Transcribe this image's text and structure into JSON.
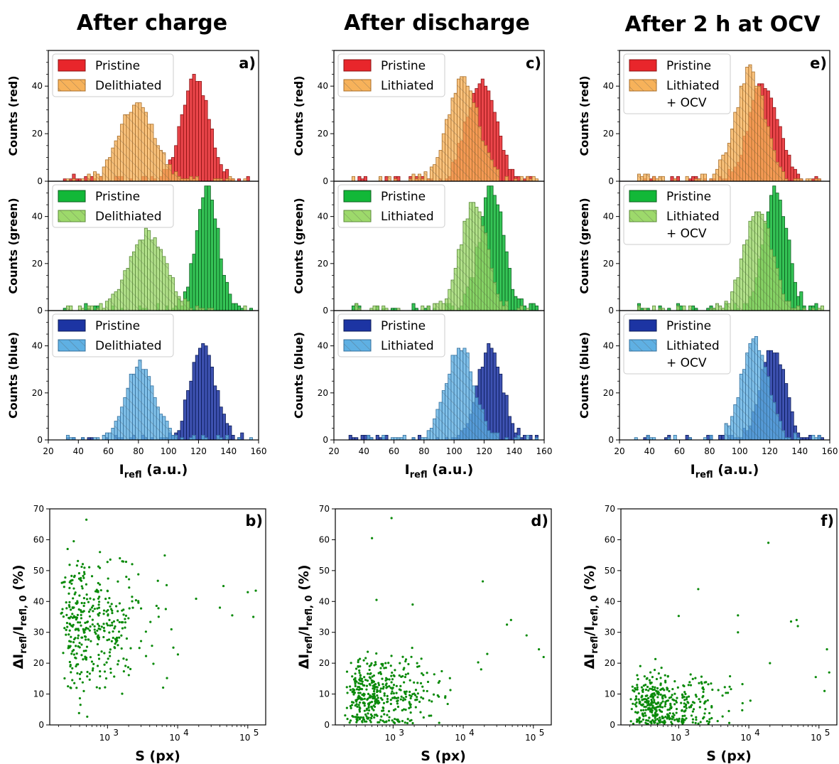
{
  "column_titles": [
    "After charge",
    "After discharge",
    "After 2 h at OCV"
  ],
  "colors": {
    "red_pristine": "#e8262b",
    "red_treated": "#f7b25a",
    "green_pristine": "#12b838",
    "green_treated": "#9dd96b",
    "blue_pristine": "#1c34a3",
    "blue_treated": "#5fb0e3",
    "scatter": "#0a8a0a"
  },
  "chart_data": [
    {
      "type": "bar",
      "panel": "a)",
      "column": 0,
      "xlabel": "I_refl (a.u.)",
      "xlim": [
        20,
        160
      ],
      "xticks": [
        20,
        40,
        60,
        80,
        100,
        120,
        140,
        160
      ],
      "rows": [
        {
          "ylabel": "Counts (red)",
          "ylim": [
            0,
            55
          ],
          "yticks": [
            0,
            20,
            40
          ],
          "pristine_label": "Pristine",
          "treated_label": "Delithiated",
          "pristine": {
            "mu": 118,
            "sigma": 9,
            "peak": 44
          },
          "treated": {
            "mu": 79,
            "sigma": 12,
            "peak": 32
          }
        },
        {
          "ylabel": "Counts (green)",
          "ylim": [
            0,
            55
          ],
          "yticks": [
            0,
            20,
            40
          ],
          "pristine_label": "Pristine",
          "treated_label": "Delithiated",
          "pristine": {
            "mu": 126,
            "sigma": 7.5,
            "peak": 52
          },
          "treated": {
            "mu": 86,
            "sigma": 12,
            "peak": 33
          }
        },
        {
          "ylabel": "Counts (blue)",
          "ylim": [
            0,
            55
          ],
          "yticks": [
            0,
            20,
            40
          ],
          "pristine_label": "Pristine",
          "treated_label": "Delithiated",
          "pristine": {
            "mu": 123,
            "sigma": 8.5,
            "peak": 39
          },
          "treated": {
            "mu": 81,
            "sigma": 10,
            "peak": 32
          }
        }
      ]
    },
    {
      "type": "bar",
      "panel": "c)",
      "column": 1,
      "xlabel": "I_refl (a.u.)",
      "xlim": [
        20,
        160
      ],
      "xticks": [
        20,
        40,
        60,
        80,
        100,
        120,
        140,
        160
      ],
      "rows": [
        {
          "ylabel": "Counts (red)",
          "ylim": [
            0,
            55
          ],
          "yticks": [
            0,
            20,
            40
          ],
          "pristine_label": "Pristine",
          "treated_label": "Lithiated",
          "pristine": {
            "mu": 118,
            "sigma": 10,
            "peak": 42
          },
          "treated": {
            "mu": 106,
            "sigma": 10,
            "peak": 44
          }
        },
        {
          "ylabel": "Counts (green)",
          "ylim": [
            0,
            55
          ],
          "yticks": [
            0,
            20,
            40
          ],
          "pristine_label": "Pristine",
          "treated_label": "Lithiated",
          "pristine": {
            "mu": 125,
            "sigma": 8,
            "peak": 52
          },
          "treated": {
            "mu": 113,
            "sigma": 9,
            "peak": 45
          }
        },
        {
          "ylabel": "Counts (blue)",
          "ylim": [
            0,
            55
          ],
          "yticks": [
            0,
            20,
            40
          ],
          "pristine_label": "Pristine",
          "treated_label": "Lithiated",
          "pristine": {
            "mu": 124,
            "sigma": 8.5,
            "peak": 39
          },
          "treated": {
            "mu": 104,
            "sigma": 9.5,
            "peak": 40
          }
        }
      ]
    },
    {
      "type": "bar",
      "panel": "e)",
      "column": 2,
      "xlabel": "I_refl (a.u.)",
      "xlim": [
        20,
        160
      ],
      "xticks": [
        20,
        40,
        60,
        80,
        100,
        120,
        140,
        160
      ],
      "rows": [
        {
          "ylabel": "Counts (red)",
          "ylim": [
            0,
            55
          ],
          "yticks": [
            0,
            20,
            40
          ],
          "pristine_label": "Pristine",
          "treated_label": "Lithiated\n+ OCV",
          "pristine": {
            "mu": 116,
            "sigma": 10,
            "peak": 42
          },
          "treated": {
            "mu": 107,
            "sigma": 10,
            "peak": 46
          }
        },
        {
          "ylabel": "Counts (green)",
          "ylim": [
            0,
            55
          ],
          "yticks": [
            0,
            20,
            40
          ],
          "pristine_label": "Pristine",
          "treated_label": "Lithiated\n+ OCV",
          "pristine": {
            "mu": 124,
            "sigma": 8,
            "peak": 52
          },
          "treated": {
            "mu": 112,
            "sigma": 9,
            "peak": 44
          }
        },
        {
          "ylabel": "Counts (blue)",
          "ylim": [
            0,
            55
          ],
          "yticks": [
            0,
            20,
            40
          ],
          "pristine_label": "Pristine",
          "treated_label": "Lithiated\n+ OCV",
          "pristine": {
            "mu": 122,
            "sigma": 8.5,
            "peak": 39
          },
          "treated": {
            "mu": 110,
            "sigma": 9,
            "peak": 42
          }
        }
      ]
    },
    {
      "type": "scatter",
      "panel": "b)",
      "column": 0,
      "xscale": "log",
      "xlabel": "S (px)",
      "ylabel": "ΔI_refl/I_refl,0 (%)",
      "xlim": [
        150,
        180000
      ],
      "ylim": [
        0,
        70
      ],
      "yticks": [
        0,
        10,
        20,
        30,
        40,
        50,
        60,
        70
      ],
      "xticks": [
        1000,
        10000,
        100000
      ],
      "cloud": {
        "n": 380,
        "ymean": 32,
        "yspread": 11,
        "ymin": 2,
        "ymax": 55
      },
      "outliers": [
        [
          500,
          66.5
        ],
        [
          330,
          59.5
        ],
        [
          270,
          57
        ],
        [
          780,
          56
        ],
        [
          1500,
          54
        ],
        [
          100000,
          43
        ],
        [
          130000,
          43.5
        ],
        [
          120000,
          35
        ],
        [
          60000,
          35.5
        ],
        [
          45000,
          45
        ],
        [
          40000,
          38
        ]
      ]
    },
    {
      "type": "scatter",
      "panel": "d)",
      "column": 1,
      "xscale": "log",
      "xlabel": "S (px)",
      "ylabel": "ΔI_refl/I_refl,0 (%)",
      "xlim": [
        150,
        180000
      ],
      "ylim": [
        0,
        70
      ],
      "yticks": [
        0,
        10,
        20,
        30,
        40,
        50,
        60,
        70
      ],
      "xticks": [
        1000,
        10000,
        100000
      ],
      "cloud": {
        "n": 420,
        "ymean": 10,
        "yspread": 6,
        "ymin": 0.5,
        "ymax": 28
      },
      "outliers": [
        [
          950,
          67
        ],
        [
          500,
          60.5
        ],
        [
          580,
          40.5
        ],
        [
          1900,
          39
        ],
        [
          19000,
          46.5
        ],
        [
          48000,
          34
        ],
        [
          42000,
          32.5
        ],
        [
          80000,
          29
        ],
        [
          120000,
          24.5
        ],
        [
          140000,
          22
        ],
        [
          22000,
          23
        ],
        [
          18000,
          18
        ]
      ]
    },
    {
      "type": "scatter",
      "panel": "f)",
      "column": 2,
      "xscale": "log",
      "xlabel": "S (px)",
      "ylabel": "ΔI_refl/I_refl,0 (%)",
      "xlim": [
        150,
        180000
      ],
      "ylim": [
        0,
        70
      ],
      "yticks": [
        0,
        10,
        20,
        30,
        40,
        50,
        60,
        70
      ],
      "xticks": [
        1000,
        10000,
        100000
      ],
      "cloud": {
        "n": 400,
        "ymean": 6.5,
        "yspread": 5,
        "ymin": 0.3,
        "ymax": 26
      },
      "outliers": [
        [
          19000,
          59
        ],
        [
          1900,
          44
        ],
        [
          1000,
          35.3
        ],
        [
          7000,
          35.5
        ],
        [
          40000,
          33.5
        ],
        [
          48000,
          34
        ],
        [
          50000,
          32
        ],
        [
          130000,
          24.5
        ],
        [
          140000,
          17
        ],
        [
          90000,
          15.5
        ],
        [
          120000,
          11
        ],
        [
          7000,
          30
        ],
        [
          20000,
          20
        ]
      ]
    }
  ]
}
